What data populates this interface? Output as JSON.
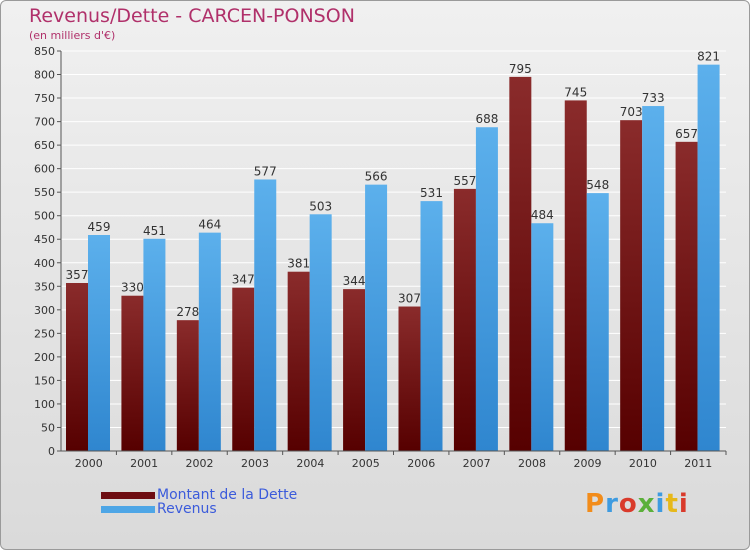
{
  "title": "Revenus/Dette - CARCEN-PONSON",
  "subtitle": "(en milliers d'€)",
  "logo": "Proxiti",
  "colors": {
    "dette": "#6e0d12",
    "revenus": "#4ea6e6",
    "text": "#b0306a",
    "legend": "#3b5bdb"
  },
  "chart_data": {
    "type": "bar",
    "title": "Revenus/Dette - CARCEN-PONSON",
    "subtitle": "(en milliers d'€)",
    "categories": [
      "2000",
      "2001",
      "2002",
      "2003",
      "2004",
      "2005",
      "2006",
      "2007",
      "2008",
      "2009",
      "2010",
      "2011"
    ],
    "series": [
      {
        "name": "Montant de la Dette",
        "values": [
          357,
          330,
          278,
          347,
          381,
          344,
          307,
          557,
          795,
          745,
          703,
          657
        ]
      },
      {
        "name": "Revenus",
        "values": [
          459,
          451,
          464,
          577,
          503,
          566,
          531,
          688,
          484,
          548,
          733,
          821
        ]
      }
    ],
    "ylim": [
      0,
      850
    ],
    "yticks": [
      0,
      50,
      100,
      150,
      200,
      250,
      300,
      350,
      400,
      450,
      500,
      550,
      600,
      650,
      700,
      750,
      800,
      850
    ],
    "grid": true,
    "legend_position": "bottom-left"
  }
}
